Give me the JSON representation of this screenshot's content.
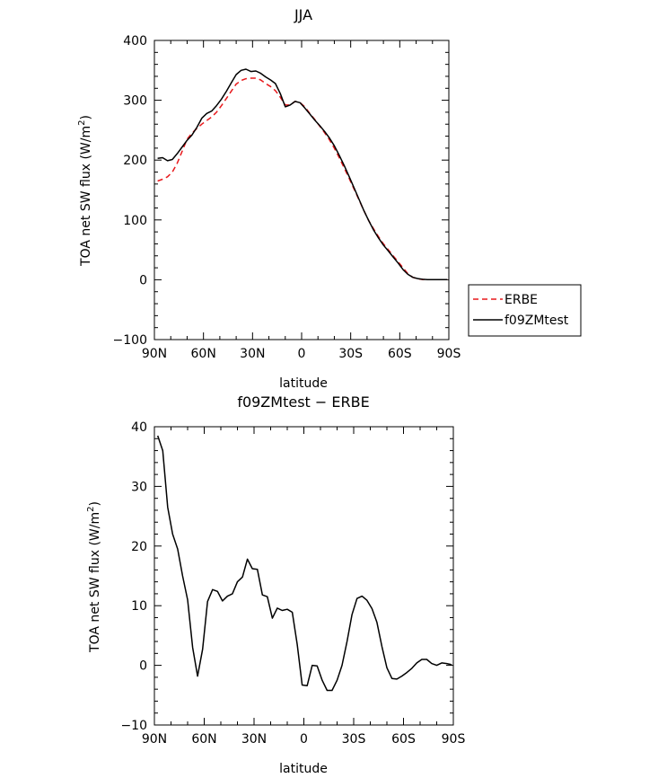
{
  "chart_data": [
    {
      "type": "line",
      "title": "JJA",
      "xlabel": "latitude",
      "ylabel": "TOA net SW flux (W/m",
      "ylabel_sup": "2",
      "ylabel_end": ")",
      "xlim": [
        90,
        -90
      ],
      "ylim": [
        -100,
        400
      ],
      "xticks": [
        90,
        60,
        30,
        0,
        -30,
        -60,
        -90
      ],
      "xtick_labels": [
        "90N",
        "60N",
        "30N",
        "0",
        "30S",
        "60S",
        "90S"
      ],
      "yticks": [
        -100,
        0,
        100,
        200,
        300,
        400
      ],
      "ytick_labels": [
        "−100",
        "0",
        "100",
        "200",
        "300",
        "400"
      ],
      "legend_position": "right-outside",
      "series": [
        {
          "name": "ERBE",
          "color": "#e8191c",
          "dash": "dashed",
          "x": [
            88,
            85,
            82,
            79,
            76,
            73,
            70,
            67,
            64,
            61,
            58,
            55,
            52,
            49,
            46,
            43,
            40,
            37,
            34,
            31,
            28,
            25,
            22,
            19,
            16,
            13,
            10,
            7,
            4,
            1,
            -2,
            -5,
            -8,
            -11,
            -14,
            -17,
            -20,
            -23,
            -26,
            -29,
            -32,
            -35,
            -38,
            -41,
            -44,
            -47,
            -50,
            -53,
            -56,
            -59,
            -62,
            -65,
            -68,
            -71,
            -74,
            -77,
            -80,
            -83,
            -86,
            -89
          ],
          "values": [
            165,
            168,
            172,
            180,
            195,
            215,
            235,
            245,
            253,
            260,
            266,
            272,
            280,
            291,
            303,
            315,
            327,
            333,
            336,
            337,
            337,
            334,
            328,
            323,
            316,
            305,
            292,
            292,
            298,
            296,
            289,
            278,
            268,
            257,
            246,
            234,
            220,
            204,
            187,
            170,
            152,
            134,
            116,
            99,
            85,
            72,
            60,
            50,
            40,
            30,
            20,
            10,
            4,
            1.5,
            0.5,
            0.2,
            0.1,
            0.1,
            0.1,
            0.1
          ]
        },
        {
          "name": "f09ZMtest",
          "color": "#000000",
          "dash": "solid",
          "x": [
            88,
            85,
            82,
            79,
            76,
            73,
            70,
            67,
            64,
            61,
            58,
            55,
            52,
            49,
            46,
            43,
            40,
            37,
            34,
            31,
            28,
            25,
            22,
            19,
            16,
            13,
            10,
            7,
            4,
            1,
            -2,
            -5,
            -8,
            -11,
            -14,
            -17,
            -20,
            -23,
            -26,
            -29,
            -32,
            -35,
            -38,
            -41,
            -44,
            -47,
            -50,
            -53,
            -56,
            -59,
            -62,
            -65,
            -68,
            -71,
            -74,
            -77,
            -80,
            -83,
            -86,
            -89
          ],
          "values": [
            203,
            204,
            199,
            201,
            211,
            222,
            233,
            242,
            255,
            270,
            278,
            282,
            291,
            302,
            315,
            329,
            343,
            350,
            352,
            348,
            349,
            345,
            339,
            334,
            328,
            311,
            289,
            292,
            298,
            296,
            287,
            277,
            267,
            258,
            248,
            237,
            224,
            208,
            191,
            173,
            154,
            135,
            116,
            99,
            83,
            70,
            58,
            48,
            38,
            28,
            17,
            9,
            4,
            2,
            0.7,
            0.3,
            0.2,
            0.1,
            0.1,
            0.1
          ]
        }
      ]
    },
    {
      "type": "line",
      "title": "f09ZMtest − ERBE",
      "xlabel": "latitude",
      "ylabel": "TOA net SW flux (W/m",
      "ylabel_sup": "2",
      "ylabel_end": ")",
      "xlim": [
        90,
        -90
      ],
      "ylim": [
        -10,
        40
      ],
      "xticks": [
        90,
        60,
        30,
        0,
        -30,
        -60,
        -90
      ],
      "xtick_labels": [
        "90N",
        "60N",
        "30N",
        "0",
        "30S",
        "60S",
        "90S"
      ],
      "yticks": [
        -10,
        0,
        10,
        20,
        30,
        40
      ],
      "ytick_labels": [
        "−10",
        "0",
        "10",
        "20",
        "30",
        "40"
      ],
      "series": [
        {
          "color": "#000000",
          "dash": "solid",
          "x": [
            88,
            85,
            82,
            79,
            76,
            73,
            70,
            67,
            64,
            61,
            58,
            55,
            52,
            49,
            46,
            43,
            40,
            37,
            34,
            31,
            28,
            25,
            22,
            19,
            16,
            13,
            10,
            7,
            4,
            1,
            -2,
            -5,
            -8,
            -11,
            -14,
            -17,
            -20,
            -23,
            -26,
            -29,
            -32,
            -35,
            -38,
            -41,
            -44,
            -47,
            -50,
            -53,
            -56,
            -59,
            -62,
            -65,
            -68,
            -71,
            -74,
            -77,
            -80,
            -83,
            -86,
            -89
          ],
          "values": [
            38.5,
            36,
            26.5,
            22,
            19.5,
            15,
            11,
            3,
            -1.8,
            2.7,
            10.7,
            12.7,
            12.4,
            10.8,
            11.6,
            12,
            14,
            14.8,
            17.8,
            16.2,
            16.1,
            11.8,
            11.5,
            7.9,
            9.6,
            9.2,
            9.4,
            8.9,
            3.5,
            -3.3,
            -3.4,
            0,
            -0.1,
            -2.5,
            -4.2,
            -4.2,
            -2.5,
            0,
            4,
            8.5,
            11.2,
            11.6,
            10.9,
            9.5,
            7.2,
            3.2,
            -0.4,
            -2.2,
            -2.3,
            -1.8,
            -1.2,
            -0.5,
            0.4,
            1,
            1,
            0.3,
            0,
            0.4,
            0.3,
            0.1
          ]
        }
      ]
    }
  ]
}
